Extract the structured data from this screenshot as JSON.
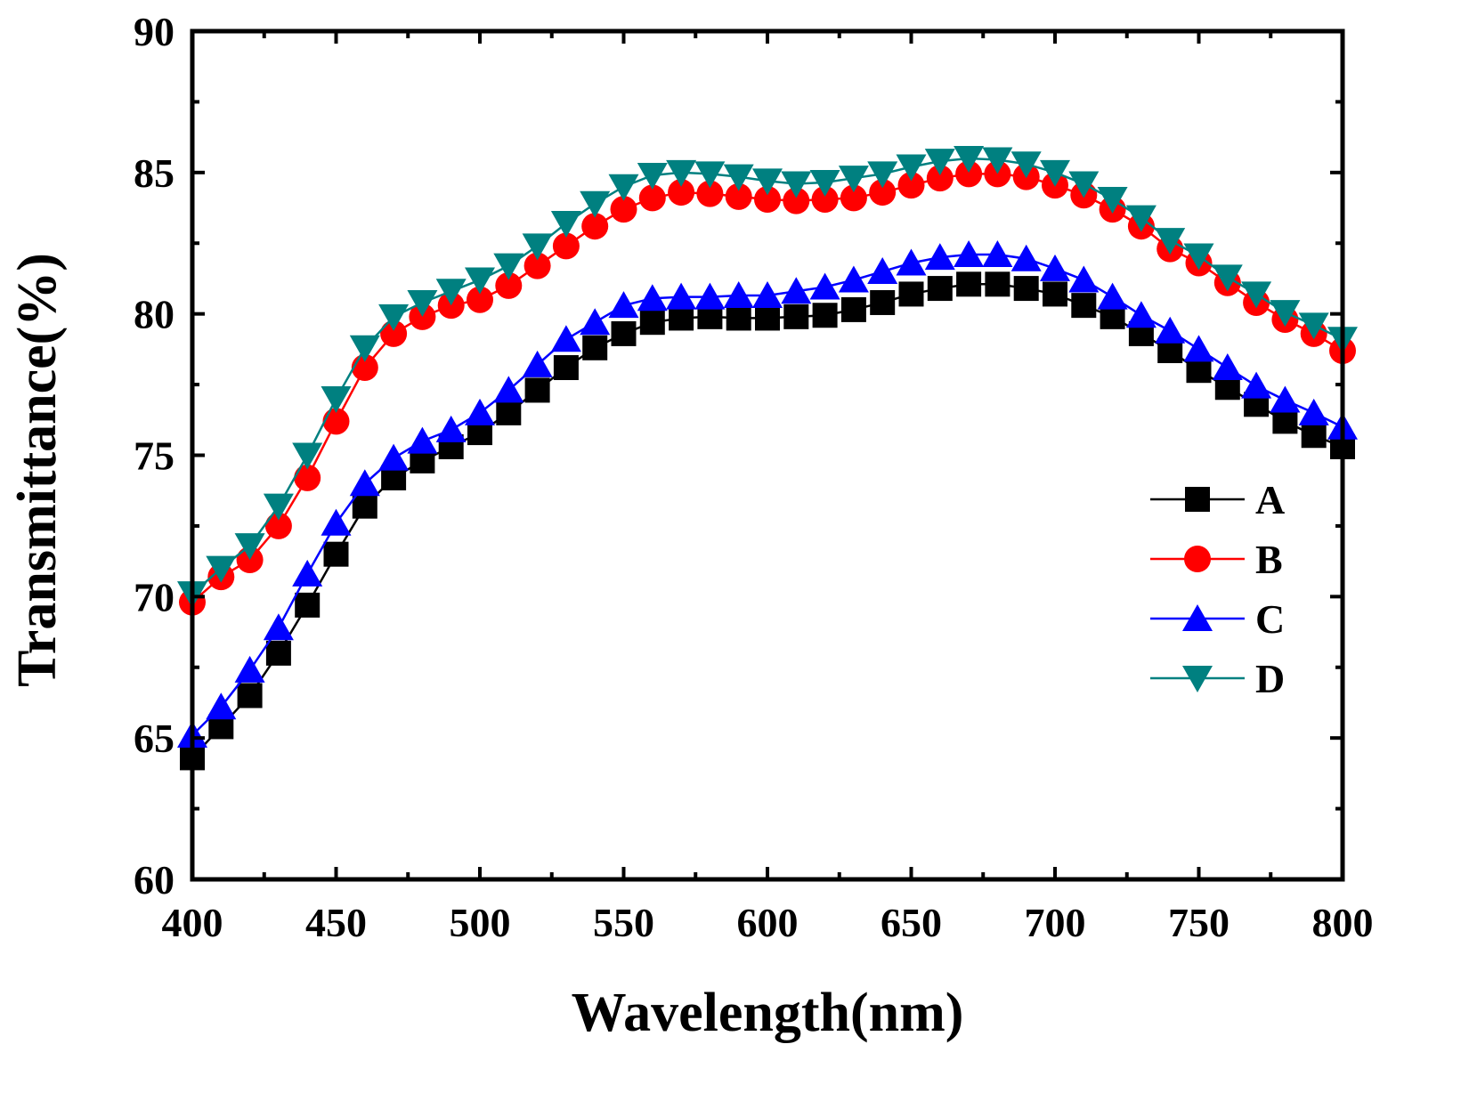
{
  "chart_data": {
    "type": "line",
    "title": "",
    "xlabel": "Wavelength(nm)",
    "ylabel": "Transmittance(%)",
    "xlim": [
      400,
      800
    ],
    "ylim": [
      60,
      90
    ],
    "xticks": [
      400,
      450,
      500,
      550,
      600,
      650,
      700,
      750,
      800
    ],
    "yticks": [
      60,
      65,
      70,
      75,
      80,
      85,
      90
    ],
    "grid": false,
    "legend_position": "right",
    "x": [
      400,
      410,
      420,
      430,
      440,
      450,
      460,
      470,
      480,
      490,
      500,
      510,
      520,
      530,
      540,
      550,
      560,
      570,
      580,
      590,
      600,
      610,
      620,
      630,
      640,
      650,
      660,
      670,
      680,
      690,
      700,
      710,
      720,
      730,
      740,
      750,
      760,
      770,
      780,
      790,
      800
    ],
    "series": [
      {
        "name": "A",
        "color": "#000000",
        "marker": "square",
        "values": [
          64.3,
          65.4,
          66.5,
          68.0,
          69.7,
          71.5,
          73.2,
          74.2,
          74.8,
          75.3,
          75.8,
          76.5,
          77.3,
          78.1,
          78.8,
          79.3,
          79.7,
          79.85,
          79.9,
          79.85,
          79.85,
          79.9,
          79.95,
          80.15,
          80.4,
          80.7,
          80.9,
          81.05,
          81.05,
          80.9,
          80.7,
          80.3,
          79.9,
          79.3,
          78.7,
          78.0,
          77.4,
          76.8,
          76.2,
          75.7,
          75.3
        ]
      },
      {
        "name": "B",
        "color": "#ff0000",
        "marker": "circle",
        "values": [
          69.8,
          70.7,
          71.3,
          72.5,
          74.2,
          76.2,
          78.1,
          79.3,
          79.9,
          80.3,
          80.5,
          81.0,
          81.7,
          82.4,
          83.1,
          83.7,
          84.1,
          84.3,
          84.25,
          84.15,
          84.05,
          84.0,
          84.05,
          84.1,
          84.3,
          84.55,
          84.8,
          84.95,
          84.95,
          84.85,
          84.55,
          84.2,
          83.7,
          83.1,
          82.3,
          81.8,
          81.1,
          80.4,
          79.8,
          79.3,
          78.7
        ]
      },
      {
        "name": "C",
        "color": "#0000ff",
        "marker": "triangle-up",
        "values": [
          65.1,
          66.1,
          67.4,
          68.9,
          70.8,
          72.6,
          74.0,
          74.9,
          75.5,
          75.9,
          76.5,
          77.3,
          78.2,
          79.1,
          79.7,
          80.3,
          80.55,
          80.6,
          80.6,
          80.65,
          80.65,
          80.8,
          80.95,
          81.2,
          81.5,
          81.8,
          82.0,
          82.1,
          82.1,
          81.95,
          81.6,
          81.2,
          80.6,
          79.95,
          79.4,
          78.75,
          78.1,
          77.45,
          76.95,
          76.5,
          76.0
        ]
      },
      {
        "name": "D",
        "color": "#008080",
        "marker": "triangle-down",
        "values": [
          70.1,
          71.0,
          71.8,
          73.2,
          75.0,
          77.0,
          78.8,
          79.9,
          80.4,
          80.8,
          81.2,
          81.7,
          82.4,
          83.2,
          83.9,
          84.5,
          84.9,
          85.0,
          84.95,
          84.85,
          84.7,
          84.6,
          84.65,
          84.8,
          84.95,
          85.2,
          85.4,
          85.5,
          85.45,
          85.3,
          85.0,
          84.6,
          84.05,
          83.4,
          82.6,
          82.05,
          81.3,
          80.7,
          80.05,
          79.6,
          79.1
        ]
      }
    ]
  }
}
